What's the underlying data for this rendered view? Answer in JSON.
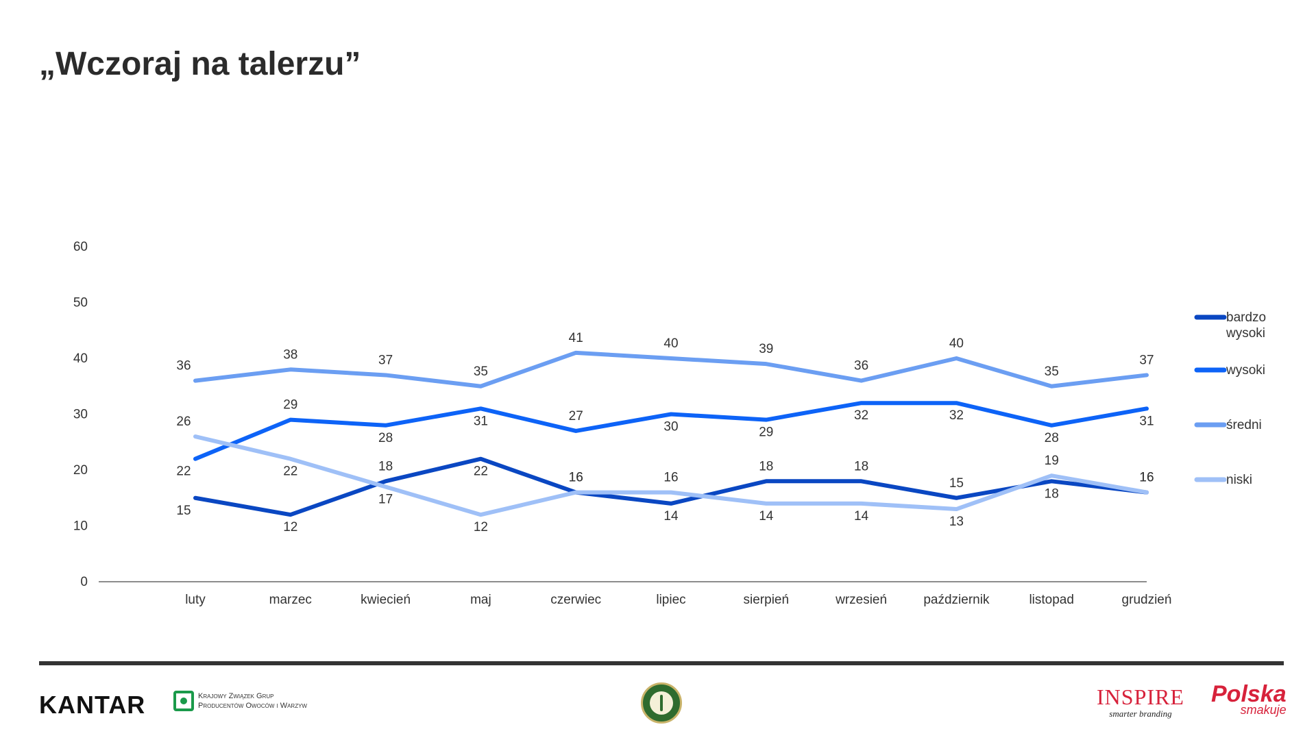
{
  "title": "„Wczoraj na talerzu”",
  "chart_data": {
    "type": "line",
    "title": "",
    "xlabel": "",
    "ylabel": "",
    "ylim": [
      0,
      60
    ],
    "yticks": [
      0,
      10,
      20,
      30,
      40,
      50,
      60
    ],
    "grid": false,
    "legend_position": "right",
    "categories": [
      "luty",
      "marzec",
      "kwiecień",
      "maj",
      "czerwiec",
      "lipiec",
      "sierpień",
      "wrzesień",
      "październik",
      "listopad",
      "grudzień"
    ],
    "series": [
      {
        "name": "bardzo wysoki",
        "color": "#0a47c2",
        "values": [
          15,
          12,
          18,
          22,
          16,
          14,
          18,
          18,
          15,
          18,
          16
        ]
      },
      {
        "name": "wysoki",
        "color": "#0d63f7",
        "values": [
          22,
          29,
          28,
          31,
          27,
          30,
          29,
          32,
          32,
          28,
          31
        ]
      },
      {
        "name": "średni",
        "color": "#6b9ef2",
        "values": [
          36,
          38,
          37,
          35,
          41,
          40,
          39,
          36,
          40,
          35,
          37
        ]
      },
      {
        "name": "niski",
        "color": "#9fc0f7",
        "values": [
          26,
          22,
          17,
          12,
          16,
          16,
          14,
          14,
          13,
          19,
          16
        ]
      }
    ]
  },
  "footer": {
    "kantar": "KANTAR",
    "kzgp_line1": "Krajowy Związek Grup",
    "kzgp_line2": "Producentów Owoców i Warzyw",
    "inspire_name": "INSPIRE",
    "inspire_tag": "smarter branding",
    "polska_name": "Polska",
    "polska_tag": "smakuje"
  }
}
